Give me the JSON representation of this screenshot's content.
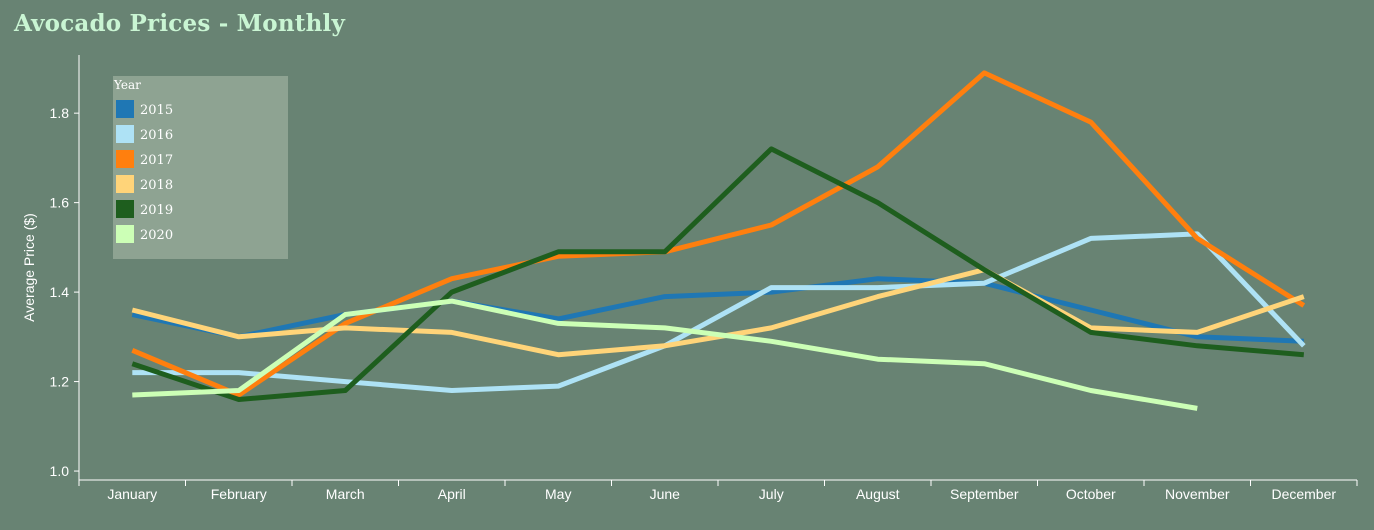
{
  "chart_data": {
    "type": "line",
    "title": "Avocado Prices - Monthly",
    "xlabel": "",
    "ylabel": "Average Price ($)",
    "ylim": [
      0.98,
      1.93
    ],
    "yticks": [
      1.0,
      1.2,
      1.4,
      1.6,
      1.8
    ],
    "ytick_labels": [
      "1.0",
      "1.2",
      "1.4",
      "1.6",
      "1.8"
    ],
    "categories": [
      "January",
      "February",
      "March",
      "April",
      "May",
      "June",
      "July",
      "August",
      "September",
      "October",
      "November",
      "December"
    ],
    "legend": {
      "title": "Year",
      "position": "top-left"
    },
    "grid": false,
    "series": [
      {
        "name": "2015",
        "color": "#1f77b4",
        "values": [
          1.35,
          1.3,
          1.35,
          1.38,
          1.34,
          1.39,
          1.4,
          1.43,
          1.42,
          1.36,
          1.3,
          1.29
        ]
      },
      {
        "name": "2016",
        "color": "#aee2f5",
        "values": [
          1.22,
          1.22,
          1.2,
          1.18,
          1.19,
          1.28,
          1.41,
          1.41,
          1.42,
          1.52,
          1.53,
          1.28
        ]
      },
      {
        "name": "2017",
        "color": "#ff7f0e",
        "values": [
          1.27,
          1.17,
          1.33,
          1.43,
          1.48,
          1.49,
          1.55,
          1.68,
          1.89,
          1.78,
          1.52,
          1.37
        ]
      },
      {
        "name": "2018",
        "color": "#ffd479",
        "values": [
          1.36,
          1.3,
          1.32,
          1.31,
          1.26,
          1.28,
          1.32,
          1.39,
          1.45,
          1.32,
          1.31,
          1.39
        ]
      },
      {
        "name": "2019",
        "color": "#1e5e1e",
        "values": [
          1.24,
          1.16,
          1.18,
          1.4,
          1.49,
          1.49,
          1.72,
          1.6,
          1.45,
          1.31,
          1.28,
          1.26
        ]
      },
      {
        "name": "2020",
        "color": "#ccffb6",
        "values": [
          1.17,
          1.18,
          1.35,
          1.38,
          1.33,
          1.32,
          1.29,
          1.25,
          1.24,
          1.18,
          1.14,
          null
        ]
      }
    ]
  }
}
